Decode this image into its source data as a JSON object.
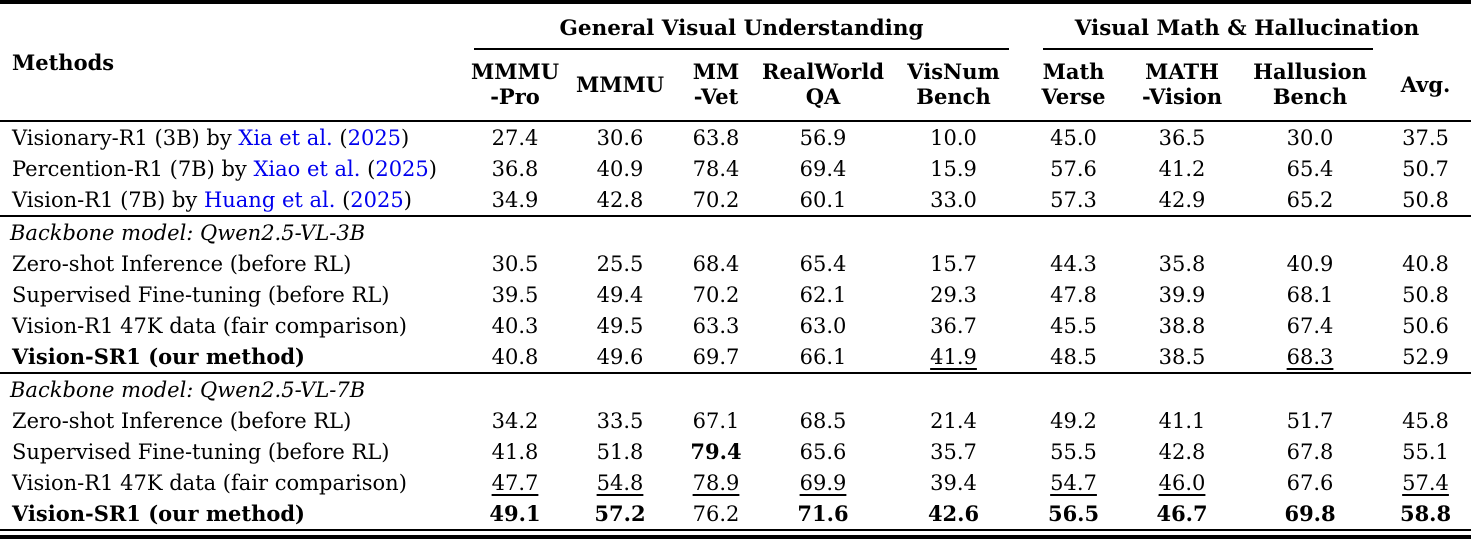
{
  "colors": {
    "link": "#0000EE",
    "text": "#000000",
    "rule": "#000000"
  },
  "header": {
    "methods": "Methods",
    "avg": "Avg.",
    "groups": [
      {
        "label": "General Visual Understanding"
      },
      {
        "label": "Visual Math & Hallucination"
      }
    ],
    "columns": [
      [
        "MMMU",
        "-Pro"
      ],
      [
        "MMMU"
      ],
      [
        "MM",
        "-Vet"
      ],
      [
        "RealWorld",
        "QA"
      ],
      [
        "VisNum",
        "Bench"
      ],
      [
        "Math",
        "Verse"
      ],
      [
        "MATH",
        "-Vision"
      ],
      [
        "Hallusion",
        "Bench"
      ]
    ]
  },
  "sections": [
    {
      "header": null,
      "rows": [
        {
          "label": {
            "pre": "Visionary-R1 (3B) by ",
            "authors": "Xia et al.",
            "mid": " (",
            "year": "2025",
            "post": ")"
          },
          "values": [
            "27.4",
            "30.6",
            "63.8",
            "56.9",
            "10.0",
            "45.0",
            "36.5",
            "30.0",
            "37.5"
          ]
        },
        {
          "label": {
            "pre": "Percention-R1 (7B) by ",
            "authors": "Xiao et al.",
            "mid": " (",
            "year": "2025",
            "post": ")"
          },
          "values": [
            "36.8",
            "40.9",
            "78.4",
            "69.4",
            "15.9",
            "57.6",
            "41.2",
            "65.4",
            "50.7"
          ]
        },
        {
          "label": {
            "pre": "Vision-R1 (7B) by ",
            "authors": "Huang et al.",
            "mid": " (",
            "year": "2025",
            "post": ")"
          },
          "values": [
            "34.9",
            "42.8",
            "70.2",
            "60.1",
            "33.0",
            "57.3",
            "42.9",
            "65.2",
            "50.8"
          ]
        }
      ]
    },
    {
      "header": "Backbone model: Qwen2.5-VL-3B",
      "rows": [
        {
          "label": "Zero-shot Inference (before RL)",
          "values": [
            "30.5",
            "25.5",
            "68.4",
            "65.4",
            "15.7",
            "44.3",
            "35.8",
            "40.9",
            "40.8"
          ]
        },
        {
          "label": "Supervised Fine-tuning (before RL)",
          "values": [
            "39.5",
            "49.4",
            "70.2",
            "62.1",
            "29.3",
            "47.8",
            "39.9",
            "68.1",
            "50.8"
          ]
        },
        {
          "label": "Vision-R1 47K data (fair comparison)",
          "values": [
            "40.3",
            "49.5",
            "63.3",
            "63.0",
            "36.7",
            "45.5",
            "38.8",
            "67.4",
            "50.6"
          ]
        },
        {
          "label": "Vision-SR1 (our method)",
          "bold_label": true,
          "underline": [
            4,
            7
          ],
          "values": [
            "40.8",
            "49.6",
            "69.7",
            "66.1",
            "41.9",
            "48.5",
            "38.5",
            "68.3",
            "52.9"
          ]
        }
      ]
    },
    {
      "header": "Backbone model: Qwen2.5-VL-7B",
      "rows": [
        {
          "label": "Zero-shot Inference (before RL)",
          "values": [
            "34.2",
            "33.5",
            "67.1",
            "68.5",
            "21.4",
            "49.2",
            "41.1",
            "51.7",
            "45.8"
          ]
        },
        {
          "label": "Supervised Fine-tuning (before RL)",
          "bold": [
            2
          ],
          "values": [
            "41.8",
            "51.8",
            "79.4",
            "65.6",
            "35.7",
            "55.5",
            "42.8",
            "67.8",
            "55.1"
          ]
        },
        {
          "label": "Vision-R1 47K data (fair comparison)",
          "underline": [
            0,
            1,
            2,
            3,
            5,
            6,
            8
          ],
          "values": [
            "47.7",
            "54.8",
            "78.9",
            "69.9",
            "39.4",
            "54.7",
            "46.0",
            "67.6",
            "57.4"
          ]
        },
        {
          "label": "Vision-SR1 (our method)",
          "bold_label": true,
          "bold": [
            0,
            1,
            3,
            4,
            5,
            6,
            7,
            8
          ],
          "values": [
            "49.1",
            "57.2",
            "76.2",
            "71.6",
            "42.6",
            "56.5",
            "46.7",
            "69.8",
            "58.8"
          ]
        }
      ]
    }
  ]
}
